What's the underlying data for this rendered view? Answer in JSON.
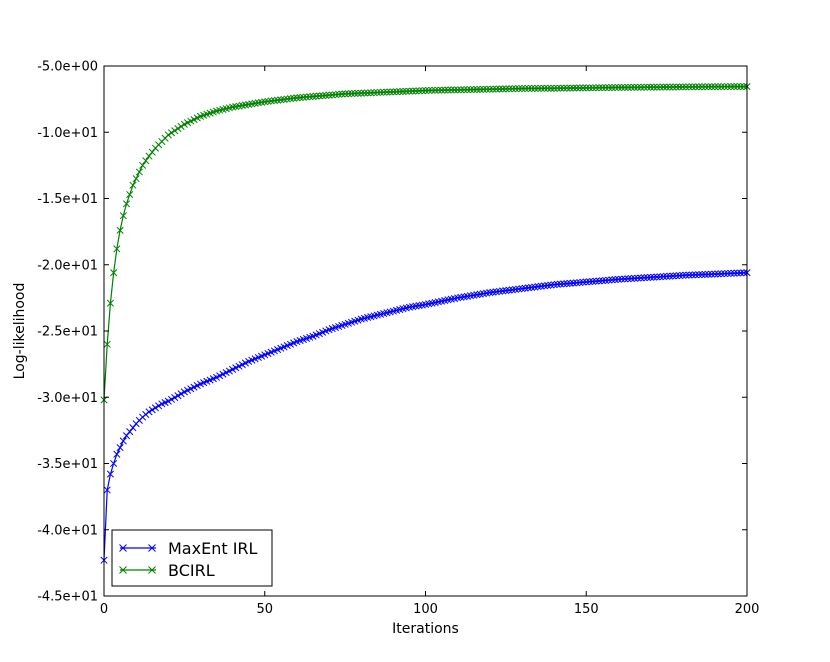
{
  "chart_data": {
    "type": "line",
    "title": "",
    "xlabel": "Iterations",
    "ylabel": "Log-likelihood",
    "xlim": [
      0,
      200
    ],
    "ylim": [
      -45,
      -5
    ],
    "xticks": [
      0,
      50,
      100,
      150,
      200
    ],
    "xtick_labels": [
      "0",
      "50",
      "100",
      "150",
      "200"
    ],
    "yticks": [
      -45,
      -40,
      -35,
      -30,
      -25,
      -20,
      -15,
      -10,
      -5
    ],
    "ytick_labels": [
      "-4.5e+01",
      "-4.0e+01",
      "-3.5e+01",
      "-3.0e+01",
      "-2.5e+01",
      "-2.0e+01",
      "-1.5e+01",
      "-1.0e+01",
      "-5.0e+00"
    ],
    "grid": false,
    "legend_position": "lower-left",
    "marker": "x",
    "series": [
      {
        "name": "MaxEnt IRL",
        "color": "#0000ff",
        "x": [
          0,
          1,
          2,
          3,
          4,
          5,
          6,
          7,
          8,
          9,
          10,
          12,
          14,
          16,
          18,
          20,
          25,
          30,
          35,
          40,
          45,
          50,
          55,
          60,
          65,
          70,
          75,
          80,
          85,
          90,
          95,
          100,
          110,
          120,
          130,
          140,
          150,
          160,
          170,
          180,
          190,
          200
        ],
        "y": [
          -42.3,
          -37.0,
          -35.8,
          -35.0,
          -34.3,
          -33.8,
          -33.3,
          -32.9,
          -32.6,
          -32.3,
          -32.0,
          -31.5,
          -31.1,
          -30.8,
          -30.5,
          -30.3,
          -29.6,
          -29.0,
          -28.5,
          -27.9,
          -27.3,
          -26.8,
          -26.3,
          -25.8,
          -25.4,
          -24.9,
          -24.5,
          -24.1,
          -23.8,
          -23.5,
          -23.2,
          -23.0,
          -22.5,
          -22.1,
          -21.8,
          -21.5,
          -21.3,
          -21.1,
          -20.95,
          -20.8,
          -20.7,
          -20.6
        ]
      },
      {
        "name": "BCIRL",
        "color": "#008000",
        "x": [
          0,
          1,
          2,
          3,
          4,
          5,
          6,
          7,
          8,
          9,
          10,
          12,
          14,
          16,
          18,
          20,
          25,
          30,
          35,
          40,
          45,
          50,
          55,
          60,
          65,
          70,
          75,
          80,
          85,
          90,
          95,
          100,
          110,
          120,
          130,
          140,
          150,
          160,
          170,
          180,
          190,
          200
        ],
        "y": [
          -30.2,
          -26.0,
          -22.9,
          -20.6,
          -18.8,
          -17.4,
          -16.3,
          -15.4,
          -14.7,
          -14.0,
          -13.5,
          -12.5,
          -11.8,
          -11.2,
          -10.7,
          -10.2,
          -9.4,
          -8.8,
          -8.4,
          -8.1,
          -7.9,
          -7.7,
          -7.55,
          -7.4,
          -7.3,
          -7.2,
          -7.1,
          -7.05,
          -7.0,
          -6.95,
          -6.9,
          -6.85,
          -6.8,
          -6.75,
          -6.7,
          -6.68,
          -6.65,
          -6.62,
          -6.6,
          -6.58,
          -6.56,
          -6.55
        ]
      }
    ]
  }
}
